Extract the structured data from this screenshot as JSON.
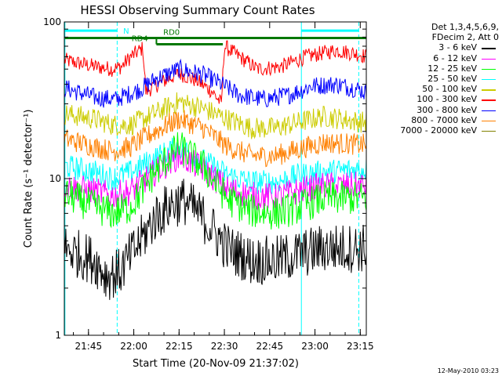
{
  "chart_data": {
    "type": "line",
    "title": "HESSI Observing Summary Count Rates",
    "xlabel": "Start Time (20-Nov-09 21:37:02)",
    "ylabel": "Count Rate (s⁻¹ detector⁻¹)",
    "x_unit": "minutes after start time (21:37:02)",
    "xlim": [
      0,
      100
    ],
    "ylim": [
      1,
      100
    ],
    "yscale": "log",
    "x_ticks": [
      {
        "label": "21:45",
        "x": 8
      },
      {
        "label": "22:00",
        "x": 23
      },
      {
        "label": "22:15",
        "x": 38
      },
      {
        "label": "22:30",
        "x": 53
      },
      {
        "label": "22:45",
        "x": 68
      },
      {
        "label": "23:00",
        "x": 83
      },
      {
        "label": "23:15",
        "x": 98
      }
    ],
    "y_ticks": [
      {
        "label": "1",
        "y": 1
      },
      {
        "label": "10",
        "y": 10
      },
      {
        "label": "100",
        "y": 100
      }
    ],
    "legend": {
      "placement": "right",
      "header": [
        "Det 1,3,4,5,6,9,",
        "FDecim 2, Att 0"
      ],
      "entries": [
        {
          "label": "3 - 6 keV",
          "color": "#000000"
        },
        {
          "label": "6 - 12 keV",
          "color": "#ff00ff"
        },
        {
          "label": "12 - 25 keV",
          "color": "#00ff00"
        },
        {
          "label": "25 - 50 keV",
          "color": "#00ffff"
        },
        {
          "label": "50 - 100 keV",
          "color": "#cccc00"
        },
        {
          "label": "100 - 300 keV",
          "color": "#ff0000"
        },
        {
          "label": "300 - 800 keV",
          "color": "#0000ff"
        },
        {
          "label": "800 - 7000 keV",
          "color": "#ff8000"
        },
        {
          "label": "7000 - 20000 keV",
          "color": "#808000"
        }
      ]
    },
    "series": [
      {
        "color": "#ff0000",
        "noise": 0.05,
        "points": [
          [
            0,
            57
          ],
          [
            10,
            52
          ],
          [
            16,
            50
          ],
          [
            19,
            52
          ],
          [
            22,
            60
          ],
          [
            26,
            68
          ],
          [
            27,
            36
          ],
          [
            31,
            40
          ],
          [
            38,
            47
          ],
          [
            44,
            42
          ],
          [
            49,
            36
          ],
          [
            52,
            30
          ],
          [
            53,
            70
          ],
          [
            58,
            60
          ],
          [
            64,
            50
          ],
          [
            72,
            52
          ],
          [
            80,
            60
          ],
          [
            90,
            66
          ],
          [
            98,
            62
          ],
          [
            100,
            60
          ]
        ]
      },
      {
        "color": "#0000ff",
        "noise": 0.06,
        "points": [
          [
            0,
            38
          ],
          [
            10,
            33
          ],
          [
            17,
            32
          ],
          [
            22,
            35
          ],
          [
            26,
            38
          ],
          [
            30,
            43
          ],
          [
            38,
            50
          ],
          [
            46,
            46
          ],
          [
            52,
            40
          ],
          [
            58,
            34
          ],
          [
            66,
            32
          ],
          [
            74,
            34
          ],
          [
            82,
            39
          ],
          [
            90,
            40
          ],
          [
            98,
            37
          ],
          [
            100,
            35
          ]
        ]
      },
      {
        "color": "#cccc00",
        "noise": 0.07,
        "points": [
          [
            0,
            26
          ],
          [
            10,
            24
          ],
          [
            16,
            22
          ],
          [
            22,
            22
          ],
          [
            30,
            26
          ],
          [
            38,
            31
          ],
          [
            46,
            28
          ],
          [
            54,
            24
          ],
          [
            62,
            21
          ],
          [
            70,
            21
          ],
          [
            78,
            23
          ],
          [
            86,
            25
          ],
          [
            98,
            23
          ],
          [
            100,
            23
          ]
        ]
      },
      {
        "color": "#ff8000",
        "noise": 0.07,
        "points": [
          [
            0,
            18
          ],
          [
            10,
            16
          ],
          [
            16,
            15
          ],
          [
            22,
            16
          ],
          [
            30,
            20
          ],
          [
            38,
            24
          ],
          [
            46,
            21
          ],
          [
            54,
            16
          ],
          [
            62,
            14
          ],
          [
            70,
            14
          ],
          [
            78,
            15.5
          ],
          [
            86,
            17
          ],
          [
            98,
            16.5
          ],
          [
            100,
            16.5
          ]
        ]
      },
      {
        "color": "#00ffff",
        "noise": 0.08,
        "points": [
          [
            0,
            12
          ],
          [
            10,
            11
          ],
          [
            16,
            10
          ],
          [
            22,
            11
          ],
          [
            30,
            13.5
          ],
          [
            38,
            16
          ],
          [
            46,
            13
          ],
          [
            54,
            10.5
          ],
          [
            62,
            9.5
          ],
          [
            70,
            9.5
          ],
          [
            78,
            10.5
          ],
          [
            86,
            11
          ],
          [
            98,
            11.5
          ],
          [
            100,
            11.5
          ]
        ]
      },
      {
        "color": "#ff00ff",
        "noise": 0.09,
        "points": [
          [
            0,
            9
          ],
          [
            10,
            8.3
          ],
          [
            16,
            7.8
          ],
          [
            22,
            8.3
          ],
          [
            30,
            11
          ],
          [
            38,
            14
          ],
          [
            46,
            11.5
          ],
          [
            54,
            8.6
          ],
          [
            62,
            7.8
          ],
          [
            70,
            7.6
          ],
          [
            78,
            8.4
          ],
          [
            86,
            9
          ],
          [
            98,
            9
          ],
          [
            100,
            9
          ]
        ]
      },
      {
        "color": "#00ff00",
        "noise": 0.11,
        "points": [
          [
            0,
            8
          ],
          [
            10,
            6.6
          ],
          [
            16,
            6.0
          ],
          [
            22,
            6.6
          ],
          [
            30,
            11
          ],
          [
            38,
            16
          ],
          [
            46,
            12
          ],
          [
            54,
            7.4
          ],
          [
            62,
            6.2
          ],
          [
            70,
            6.0
          ],
          [
            78,
            6.6
          ],
          [
            86,
            7.5
          ],
          [
            98,
            7.5
          ],
          [
            100,
            7.5
          ]
        ]
      },
      {
        "color": "#000000",
        "noise": 0.16,
        "points": [
          [
            0,
            3.6
          ],
          [
            10,
            3.0
          ],
          [
            14,
            2.4
          ],
          [
            18,
            2.5
          ],
          [
            22,
            3.2
          ],
          [
            30,
            5.6
          ],
          [
            36,
            7.0
          ],
          [
            40,
            7.2
          ],
          [
            46,
            5.6
          ],
          [
            54,
            3.6
          ],
          [
            62,
            3.0
          ],
          [
            70,
            3.0
          ],
          [
            78,
            3.3
          ],
          [
            86,
            3.6
          ],
          [
            98,
            3.6
          ],
          [
            100,
            3.6
          ]
        ]
      }
    ],
    "vertical_markers": [
      {
        "x": 0.2,
        "style": "solid",
        "color": "#00ffff"
      },
      {
        "x": 17.5,
        "style": "dashed",
        "color": "#00ffff"
      },
      {
        "x": 78.5,
        "style": "solid",
        "color": "#00ffff"
      },
      {
        "x": 97.5,
        "style": "dashed",
        "color": "#00ffff"
      }
    ],
    "annotation_bars": [
      {
        "label": "N",
        "color": "#00ffff",
        "y": 88,
        "x_start": 0.2,
        "x_end": 17.5,
        "label_x": 20.5,
        "label_side": "right"
      },
      {
        "label": "",
        "color": "#00ffff",
        "y": 88,
        "x_start": 78.5,
        "x_end": 97.5
      },
      {
        "label": "RD0",
        "color": "#007700",
        "y": 79,
        "x_start": 0.2,
        "x_end": 100,
        "label_x": 35.5,
        "label_side": "above"
      },
      {
        "label": "RD4",
        "color": "#007700",
        "y": 72,
        "x_start": 30.5,
        "x_end": 52.5,
        "label_x": 25,
        "label_side": "above"
      }
    ]
  },
  "footer": {
    "date": "12-May-2010 03:23"
  }
}
